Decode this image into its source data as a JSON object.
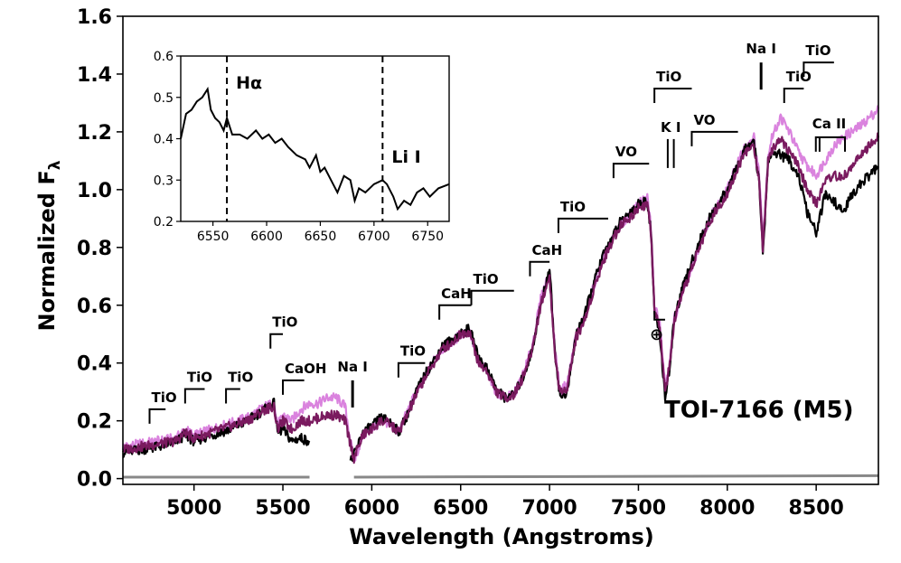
{
  "chart_data": {
    "type": "line",
    "xlabel": "Wavelength (Angstroms)",
    "ylabel": "Normalized F",
    "ylabel_subscript": "λ",
    "xlim": [
      4600,
      8850
    ],
    "ylim": [
      -0.02,
      1.6
    ],
    "xticks": [
      5000,
      5500,
      6000,
      6500,
      7000,
      7500,
      8000,
      8500
    ],
    "yticks": [
      0.0,
      0.2,
      0.4,
      0.6,
      0.8,
      1.0,
      1.2,
      1.4,
      1.6
    ],
    "ytick_labels": [
      "0.0",
      "0.2",
      "0.4",
      "0.6",
      "0.8",
      "1.0",
      "1.2",
      "1.4",
      "1.6"
    ],
    "target_label": "TOI-7166 (M5)",
    "telluric_symbol": "⊕",
    "series": [
      {
        "color": "#da83de",
        "x": [
          4600,
          4700,
          4800,
          4900,
          4950,
          5000,
          5100,
          5200,
          5300,
          5400,
          5450,
          5470,
          5500,
          5550,
          5600,
          5650,
          5700,
          5750,
          5800,
          5850,
          5880,
          5900,
          5950,
          6000,
          6050,
          6100,
          6150,
          6200,
          6250,
          6300,
          6350,
          6400,
          6450,
          6500,
          6550,
          6600,
          6650,
          6700,
          6750,
          6800,
          6850,
          6900,
          6950,
          7000,
          7030,
          7060,
          7100,
          7150,
          7200,
          7250,
          7300,
          7350,
          7400,
          7450,
          7500,
          7550,
          7570,
          7590,
          7620,
          7650,
          7680,
          7700,
          7750,
          7800,
          7850,
          7900,
          7950,
          8000,
          8050,
          8100,
          8150,
          8180,
          8200,
          8230,
          8250,
          8300,
          8350,
          8400,
          8450,
          8500,
          8550,
          8600,
          8650,
          8700,
          8750,
          8800,
          8850
        ],
        "y": [
          0.11,
          0.12,
          0.13,
          0.14,
          0.17,
          0.15,
          0.17,
          0.19,
          0.21,
          0.25,
          0.26,
          0.18,
          0.22,
          0.2,
          0.24,
          0.26,
          0.26,
          0.28,
          0.28,
          0.25,
          0.13,
          0.06,
          0.15,
          0.17,
          0.2,
          0.19,
          0.16,
          0.23,
          0.3,
          0.35,
          0.41,
          0.45,
          0.47,
          0.5,
          0.51,
          0.4,
          0.37,
          0.3,
          0.28,
          0.29,
          0.36,
          0.45,
          0.62,
          0.72,
          0.45,
          0.3,
          0.33,
          0.5,
          0.56,
          0.67,
          0.76,
          0.82,
          0.88,
          0.91,
          0.95,
          0.97,
          0.88,
          0.6,
          0.55,
          0.32,
          0.42,
          0.55,
          0.65,
          0.73,
          0.82,
          0.9,
          0.95,
          1.0,
          1.08,
          1.15,
          1.18,
          1.05,
          0.82,
          1.12,
          1.18,
          1.25,
          1.2,
          1.13,
          1.08,
          1.05,
          1.1,
          1.15,
          1.18,
          1.2,
          1.22,
          1.25,
          1.28
        ]
      },
      {
        "color": "#000000",
        "x": [
          4600,
          4700,
          4800,
          4900,
          4950,
          5000,
          5100,
          5200,
          5300,
          5400,
          5450,
          5470,
          5500,
          5550,
          5600,
          5650,
          5880,
          5900,
          5950,
          6000,
          6050,
          6100,
          6150,
          6200,
          6250,
          6300,
          6350,
          6400,
          6450,
          6500,
          6550,
          6600,
          6650,
          6700,
          6750,
          6800,
          6850,
          6900,
          6950,
          7000,
          7030,
          7060,
          7100,
          7150,
          7200,
          7250,
          7300,
          7350,
          7400,
          7450,
          7500,
          7550,
          7570,
          7590,
          7620,
          7650,
          7680,
          7700,
          7750,
          7800,
          7850,
          7900,
          7950,
          8000,
          8050,
          8100,
          8150,
          8180,
          8200,
          8230,
          8250,
          8300,
          8350,
          8400,
          8450,
          8500,
          8550,
          8600,
          8650,
          8700,
          8750,
          8800,
          8850
        ],
        "y": [
          0.09,
          0.1,
          0.11,
          0.13,
          0.15,
          0.13,
          0.15,
          0.17,
          0.2,
          0.24,
          0.26,
          0.16,
          0.17,
          0.13,
          0.14,
          0.13,
          0.06,
          0.08,
          0.16,
          0.18,
          0.21,
          0.2,
          0.16,
          0.22,
          0.3,
          0.36,
          0.41,
          0.46,
          0.48,
          0.5,
          0.52,
          0.42,
          0.38,
          0.31,
          0.28,
          0.29,
          0.35,
          0.44,
          0.6,
          0.73,
          0.44,
          0.28,
          0.3,
          0.5,
          0.57,
          0.68,
          0.77,
          0.83,
          0.89,
          0.92,
          0.95,
          0.96,
          0.86,
          0.58,
          0.5,
          0.28,
          0.4,
          0.55,
          0.66,
          0.75,
          0.83,
          0.9,
          0.95,
          1.0,
          1.07,
          1.14,
          1.16,
          1.02,
          0.78,
          1.1,
          1.13,
          1.12,
          1.1,
          1.05,
          0.92,
          0.85,
          0.98,
          0.96,
          0.92,
          0.98,
          1.02,
          1.05,
          1.08
        ]
      },
      {
        "color": "#7a1a5f",
        "x": [
          4600,
          4700,
          4800,
          4900,
          4950,
          5000,
          5100,
          5200,
          5300,
          5400,
          5450,
          5470,
          5500,
          5550,
          5600,
          5650,
          5700,
          5750,
          5800,
          5850,
          5880,
          5900,
          5950,
          6000,
          6050,
          6100,
          6150,
          6200,
          6250,
          6300,
          6350,
          6400,
          6450,
          6500,
          6550,
          6600,
          6650,
          6700,
          6750,
          6800,
          6850,
          6900,
          6950,
          7000,
          7030,
          7060,
          7100,
          7150,
          7200,
          7250,
          7300,
          7350,
          7400,
          7450,
          7500,
          7550,
          7570,
          7590,
          7620,
          7650,
          7680,
          7700,
          7750,
          7800,
          7850,
          7900,
          7950,
          8000,
          8050,
          8100,
          8150,
          8180,
          8200,
          8230,
          8250,
          8300,
          8350,
          8400,
          8450,
          8500,
          8550,
          8600,
          8650,
          8700,
          8750,
          8800,
          8850
        ],
        "y": [
          0.1,
          0.11,
          0.12,
          0.13,
          0.16,
          0.14,
          0.16,
          0.18,
          0.2,
          0.24,
          0.25,
          0.17,
          0.2,
          0.17,
          0.2,
          0.2,
          0.21,
          0.22,
          0.22,
          0.2,
          0.12,
          0.07,
          0.15,
          0.17,
          0.2,
          0.19,
          0.16,
          0.22,
          0.29,
          0.35,
          0.4,
          0.45,
          0.47,
          0.5,
          0.51,
          0.4,
          0.37,
          0.3,
          0.28,
          0.29,
          0.35,
          0.44,
          0.6,
          0.7,
          0.43,
          0.29,
          0.32,
          0.49,
          0.55,
          0.66,
          0.75,
          0.82,
          0.88,
          0.9,
          0.94,
          0.95,
          0.85,
          0.58,
          0.52,
          0.3,
          0.41,
          0.54,
          0.64,
          0.73,
          0.81,
          0.89,
          0.94,
          0.99,
          1.06,
          1.13,
          1.15,
          1.02,
          0.8,
          1.1,
          1.14,
          1.18,
          1.13,
          1.08,
          1.0,
          0.95,
          1.03,
          1.05,
          1.04,
          1.08,
          1.12,
          1.15,
          1.18
        ]
      }
    ],
    "uncertainty": {
      "color": "#888888",
      "segments": [
        {
          "x": [
            4600,
            5650
          ],
          "y": [
            0.005,
            0.005
          ]
        },
        {
          "x": [
            5900,
            8850
          ],
          "y": [
            0.005,
            0.01
          ]
        }
      ]
    },
    "annotations": [
      {
        "label": "TiO",
        "type": "bracket",
        "x0": 4750,
        "x1": 4840,
        "y": 0.24
      },
      {
        "label": "TiO",
        "type": "bracket",
        "x0": 4950,
        "x1": 5060,
        "y": 0.31
      },
      {
        "label": "TiO",
        "type": "bracket",
        "x0": 5180,
        "x1": 5260,
        "y": 0.31
      },
      {
        "label": "TiO",
        "type": "bracket",
        "x0": 5430,
        "x1": 5500,
        "y": 0.5
      },
      {
        "label": "CaOH",
        "type": "bracket",
        "x0": 5500,
        "x1": 5620,
        "y": 0.34
      },
      {
        "label": "Na I",
        "type": "line",
        "x0": 5892,
        "x1": 5892,
        "y": 0.34
      },
      {
        "label": "TiO",
        "type": "bracket",
        "x0": 6150,
        "x1": 6300,
        "y": 0.4
      },
      {
        "label": "CaH",
        "type": "bracket",
        "x0": 6380,
        "x1": 6560,
        "y": 0.6
      },
      {
        "label": "TiO",
        "type": "bracket",
        "x0": 6560,
        "x1": 6800,
        "y": 0.65
      },
      {
        "label": "CaH",
        "type": "bracket",
        "x0": 6890,
        "x1": 7000,
        "y": 0.75
      },
      {
        "label": "TiO",
        "type": "bracket",
        "x0": 7050,
        "x1": 7330,
        "y": 0.9
      },
      {
        "label": "VO",
        "type": "bracket",
        "x0": 7360,
        "x1": 7560,
        "y": 1.09
      },
      {
        "label": "TiO",
        "type": "bracket",
        "x0": 7590,
        "x1": 7800,
        "y": 1.35
      },
      {
        "label": "K I",
        "type": "doubleline",
        "x0": 7665,
        "x1": 7699,
        "y": 1.2
      },
      {
        "label": "VO",
        "type": "bracket",
        "x0": 7800,
        "x1": 8060,
        "y": 1.2
      },
      {
        "label": "Na I",
        "type": "line",
        "x0": 8190,
        "x1": 8190,
        "y": 1.44
      },
      {
        "label": "TiO",
        "type": "bracket",
        "x0": 8320,
        "x1": 8430,
        "y": 1.35
      },
      {
        "label": "TiO",
        "type": "bracket",
        "x0": 8430,
        "x1": 8600,
        "y": 1.44
      },
      {
        "label": "Ca II",
        "type": "triple",
        "x0": 8498,
        "x1": 8662,
        "y": 1.25
      }
    ],
    "inset": {
      "xlim": [
        6520,
        6770
      ],
      "ylim": [
        0.2,
        0.6
      ],
      "xticks": [
        6550,
        6600,
        6650,
        6700,
        6750
      ],
      "yticks": [
        0.2,
        0.3,
        0.4,
        0.5,
        0.6
      ],
      "ytick_labels": [
        "0.2",
        "0.3",
        "0.4",
        "0.5",
        "0.6"
      ],
      "vlines": [
        {
          "x": 6563,
          "label": "Hα"
        },
        {
          "x": 6708,
          "label": "Li I"
        }
      ],
      "series": {
        "color": "#000000",
        "x": [
          6520,
          6525,
          6530,
          6535,
          6540,
          6545,
          6548,
          6552,
          6556,
          6560,
          6563,
          6568,
          6575,
          6582,
          6590,
          6596,
          6602,
          6608,
          6614,
          6620,
          6628,
          6636,
          6640,
          6646,
          6650,
          6654,
          6660,
          6666,
          6672,
          6678,
          6682,
          6686,
          6692,
          6700,
          6708,
          6712,
          6718,
          6722,
          6728,
          6734,
          6740,
          6746,
          6752,
          6760,
          6770
        ],
        "y": [
          0.4,
          0.46,
          0.47,
          0.49,
          0.5,
          0.52,
          0.47,
          0.45,
          0.44,
          0.42,
          0.45,
          0.41,
          0.41,
          0.4,
          0.42,
          0.4,
          0.41,
          0.39,
          0.4,
          0.38,
          0.36,
          0.35,
          0.33,
          0.36,
          0.32,
          0.33,
          0.3,
          0.27,
          0.31,
          0.3,
          0.25,
          0.28,
          0.27,
          0.29,
          0.3,
          0.29,
          0.26,
          0.23,
          0.25,
          0.24,
          0.27,
          0.28,
          0.26,
          0.28,
          0.29
        ]
      }
    }
  }
}
